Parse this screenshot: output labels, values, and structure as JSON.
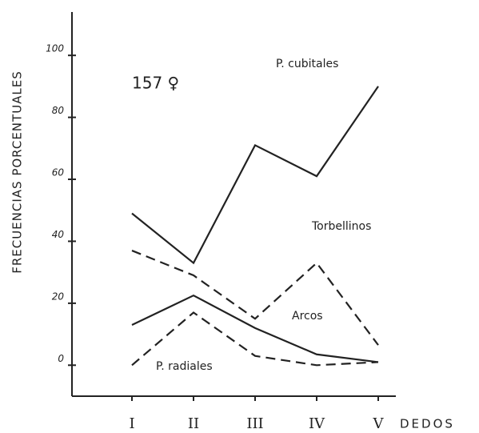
{
  "chart_data": {
    "type": "line",
    "annotation": "157 ♀",
    "ylabel": "FRECUENCIAS PORCENTUALES",
    "xlabel": "DEDOS",
    "categories": [
      "I",
      "II",
      "III",
      "IV",
      "V"
    ],
    "series": [
      {
        "name": "P. cubitales",
        "color": "#222",
        "dashed": false,
        "values": [
          49,
          33,
          71,
          61,
          90
        ]
      },
      {
        "name": "Torbellinos",
        "color": "#222",
        "dashed": true,
        "values": [
          37,
          29,
          15,
          33,
          6.5
        ]
      },
      {
        "name": "Arcos",
        "color": "#222",
        "dashed": false,
        "values": [
          13,
          22.5,
          12,
          3.5,
          1
        ]
      },
      {
        "name": "P. radiales",
        "color": "#222",
        "dashed": true,
        "values": [
          0,
          17,
          3,
          0,
          1
        ]
      }
    ],
    "ylim": [
      -10,
      114
    ],
    "yticks": [
      0,
      20,
      40,
      60,
      80,
      100
    ]
  }
}
